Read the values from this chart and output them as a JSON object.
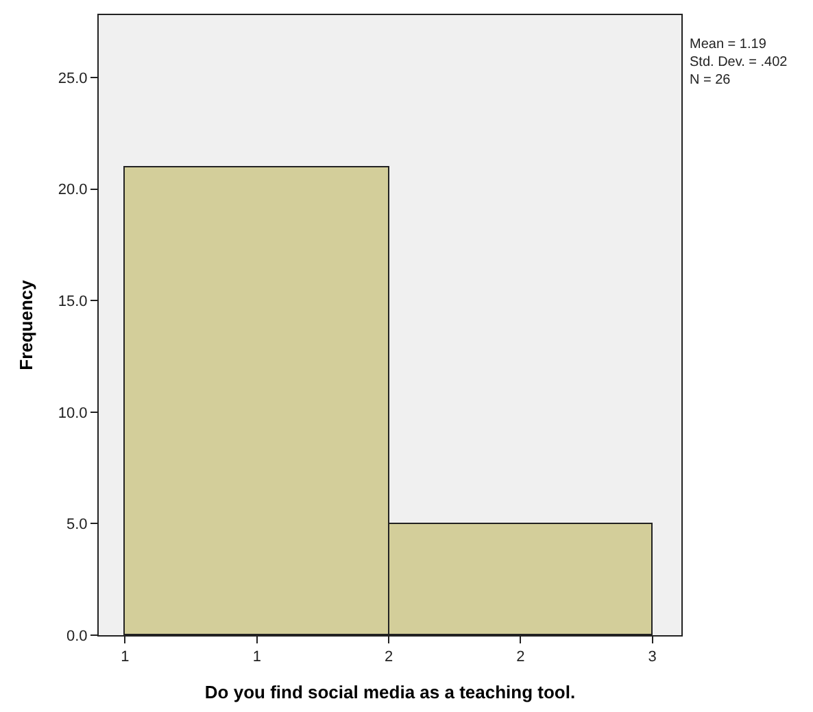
{
  "chart_data": {
    "type": "histogram",
    "xlabel": "Do you find social media as a teaching tool.",
    "ylabel": "Frequency",
    "bins": [
      1,
      2,
      3
    ],
    "values": [
      21,
      5
    ],
    "color": "#d3ce9a",
    "xlim": [
      0.9,
      3.11
    ],
    "xticks": [
      {
        "value": 1,
        "label": "1"
      },
      {
        "value": 1.5,
        "label": "1"
      },
      {
        "value": 2,
        "label": "2"
      },
      {
        "value": 2.5,
        "label": "2"
      },
      {
        "value": 3,
        "label": "3"
      }
    ],
    "ylim": [
      0,
      27.8
    ],
    "yticks": [
      {
        "value": 0,
        "label": "0.0"
      },
      {
        "value": 5,
        "label": "5.0"
      },
      {
        "value": 10,
        "label": "10.0"
      },
      {
        "value": 15,
        "label": "15.0"
      },
      {
        "value": 20,
        "label": "20.0"
      },
      {
        "value": 25,
        "label": "25.0"
      }
    ],
    "grid": false,
    "annotations": [
      "Mean = 1.19",
      "Std. Dev. = .402",
      "N = 26"
    ]
  }
}
